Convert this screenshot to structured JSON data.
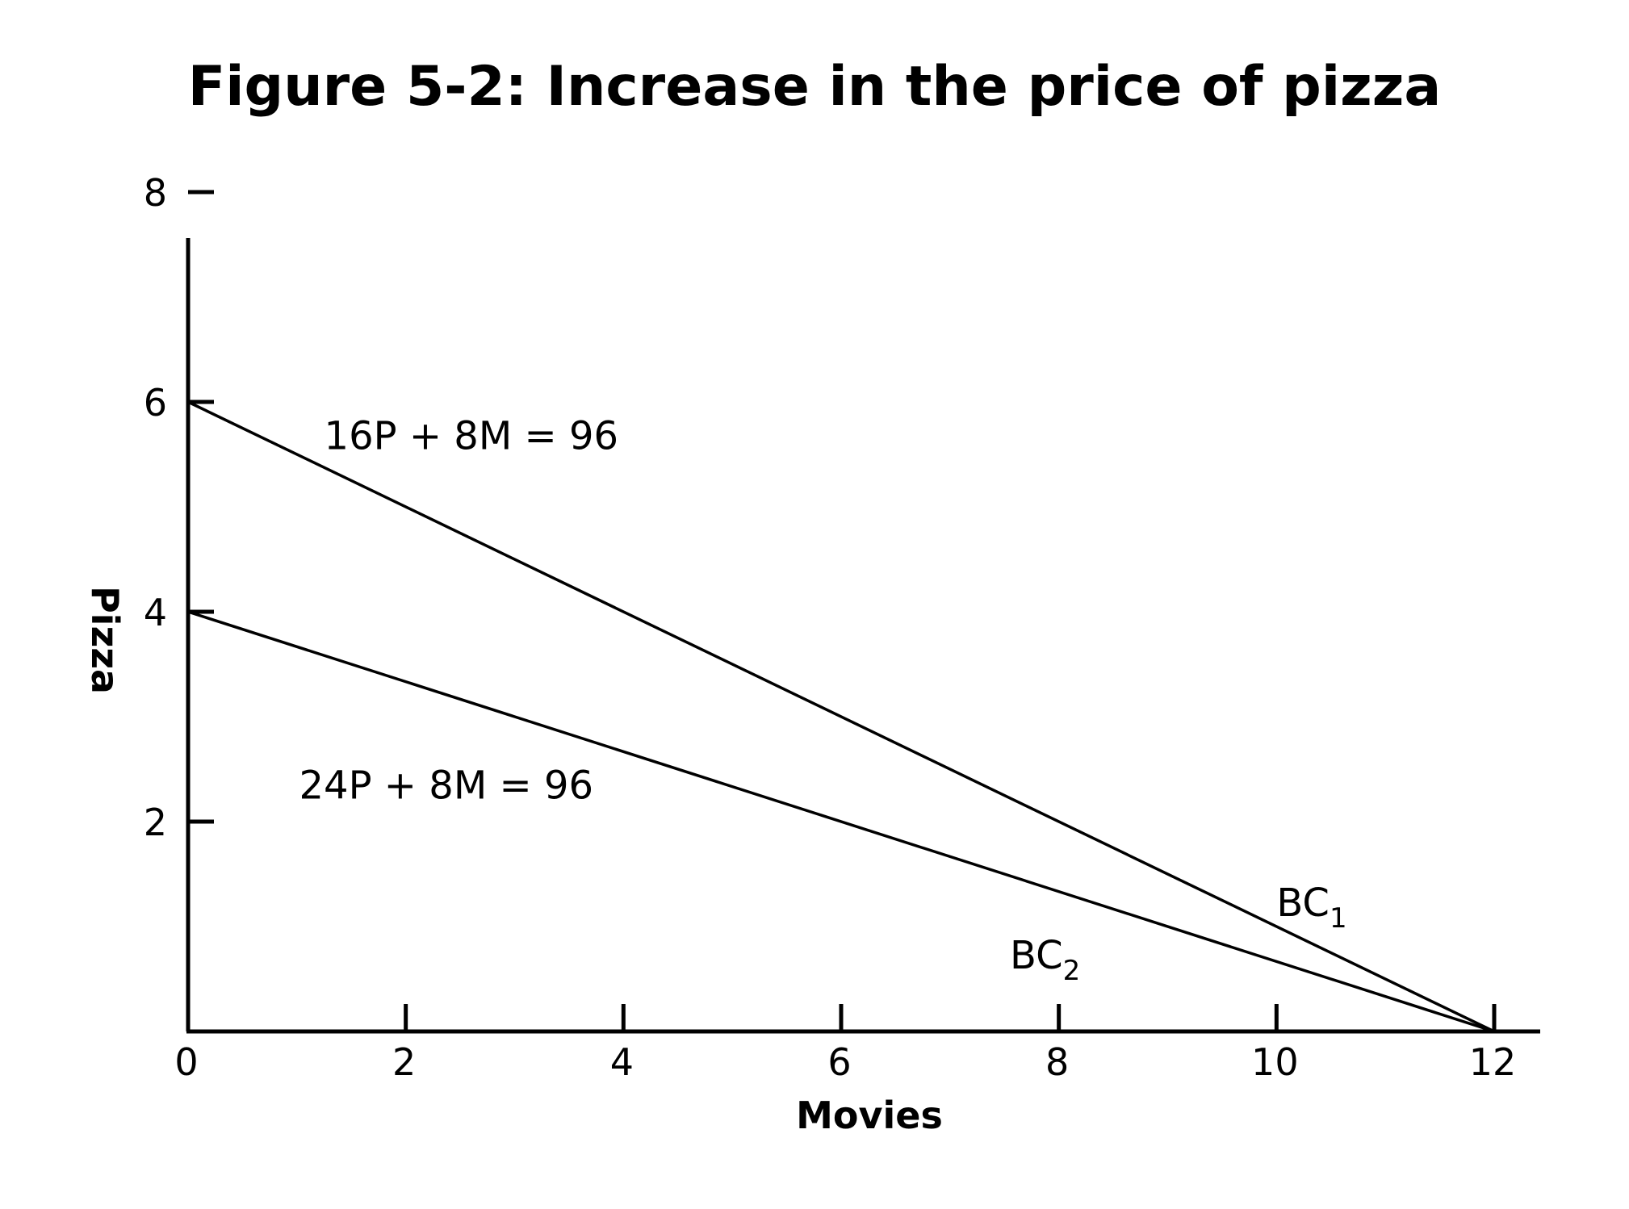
{
  "chart_data": {
    "type": "line",
    "title": "Figure 5-2: Increase in the price of pizza",
    "xlabel": "Movies",
    "ylabel": "Pizza",
    "xlim": [
      0,
      12
    ],
    "ylim": [
      0,
      8
    ],
    "x_ticks": [
      0,
      2,
      4,
      6,
      8,
      10,
      12
    ],
    "x_tick_labels": [
      "0",
      "2",
      "4",
      "6",
      "8",
      "10",
      "12"
    ],
    "y_ticks": [
      2,
      4,
      6,
      8
    ],
    "y_tick_labels": [
      "2",
      "4",
      "6",
      "8"
    ],
    "grid": false,
    "series": [
      {
        "name": "BC",
        "subscript": "1",
        "equation": "16P + 8M = 96",
        "x": [
          0,
          12
        ],
        "y": [
          6,
          0
        ]
      },
      {
        "name": "BC",
        "subscript": "2",
        "equation": "24P + 8M = 96",
        "x": [
          0,
          12
        ],
        "y": [
          4,
          0
        ]
      }
    ],
    "annotations": [
      {
        "series_index": 0,
        "kind": "equation",
        "x": 1.25,
        "y": 5.55
      },
      {
        "series_index": 1,
        "kind": "equation",
        "x": 1.02,
        "y": 2.22
      },
      {
        "series_index": 0,
        "kind": "label",
        "x": 10.0,
        "y": 1.1
      },
      {
        "series_index": 1,
        "kind": "label",
        "x": 7.55,
        "y": 0.6
      }
    ]
  }
}
